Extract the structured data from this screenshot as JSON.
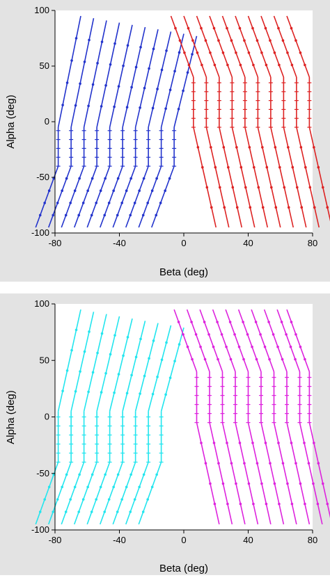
{
  "chart_data": [
    {
      "type": "line",
      "xlabel": "Beta (deg)",
      "ylabel": "Alpha (deg)",
      "xlim": [
        -80,
        80
      ],
      "ylim": [
        -100,
        100
      ],
      "xticks": [
        "-80",
        "-40",
        "0",
        "40",
        "80"
      ],
      "yticks": [
        "100",
        "50",
        "0",
        "-50",
        "-100"
      ],
      "grid": false,
      "colors": {
        "series_a": "#2233cc",
        "series_b": "#dd2222"
      },
      "series": [
        {
          "key": "series_a",
          "columns_x": [
            -78,
            -70,
            -62,
            -54,
            -46,
            -38,
            -30,
            -22,
            -14,
            -6
          ],
          "vertical_span": [
            -40,
            -5
          ]
        },
        {
          "key": "series_b",
          "columns_x": [
            6,
            14,
            22,
            30,
            38,
            46,
            54,
            62,
            70,
            78
          ],
          "vertical_span": [
            -5,
            40
          ]
        }
      ]
    },
    {
      "type": "line",
      "xlabel": "Beta (deg)",
      "ylabel": "Alpha (deg)",
      "xlim": [
        -80,
        80
      ],
      "ylim": [
        -100,
        100
      ],
      "xticks": [
        "-80",
        "-40",
        "0",
        "40",
        "80"
      ],
      "yticks": [
        "100",
        "50",
        "0",
        "-50",
        "-100"
      ],
      "grid": false,
      "colors": {
        "series_a": "#22e5ee",
        "series_b": "#dd22dd"
      },
      "series": [
        {
          "key": "series_a",
          "columns_x": [
            -78,
            -70,
            -62,
            -54,
            -46,
            -38,
            -30,
            -22,
            -14
          ],
          "vertical_span": [
            -40,
            5
          ]
        },
        {
          "key": "series_b",
          "columns_x": [
            8,
            16,
            24,
            32,
            40,
            48,
            56,
            64,
            72,
            78
          ],
          "vertical_span": [
            -5,
            40
          ]
        }
      ]
    }
  ]
}
